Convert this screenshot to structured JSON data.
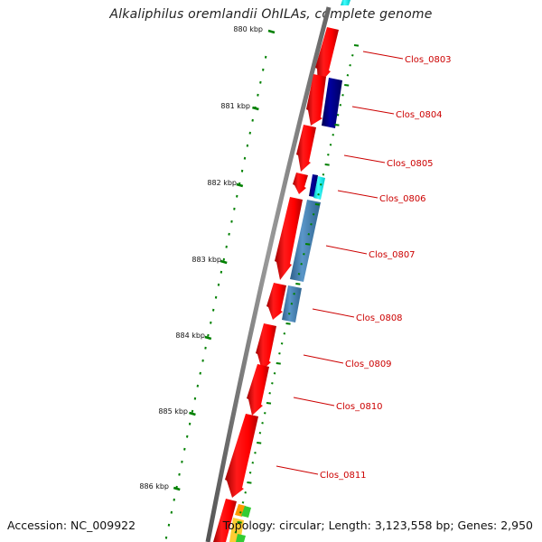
{
  "title": "Alkaliphilus oremlandii OhILAs, complete genome",
  "footer": {
    "accession": "Accession: NC_009922",
    "stats": "Topology: circular; Length: 3,123,558 bp; Genes: 2,950"
  },
  "scale_ticks": [
    {
      "label": "880 kbp",
      "kbp": 880
    },
    {
      "label": "881 kbp",
      "kbp": 881
    },
    {
      "label": "882 kbp",
      "kbp": 882
    },
    {
      "label": "883 kbp",
      "kbp": 883
    },
    {
      "label": "884 kbp",
      "kbp": 884
    },
    {
      "label": "885 kbp",
      "kbp": 885
    },
    {
      "label": "886 kbp",
      "kbp": 886
    }
  ],
  "gene_labels": [
    "Clos_0803",
    "Clos_0804",
    "Clos_0805",
    "Clos_0806",
    "Clos_0807",
    "Clos_0808",
    "Clos_0809",
    "Clos_0810",
    "Clos_0811"
  ],
  "colors": {
    "cds": "#ff0000",
    "dark_blue": "#000080",
    "steel_blue": "#4682b4",
    "cyan": "#00ffff",
    "backbone": "#808080",
    "gc_tick": "#008000",
    "label": "#cc0000",
    "orange": "#ff9900",
    "light_green": "#33cc33"
  }
}
